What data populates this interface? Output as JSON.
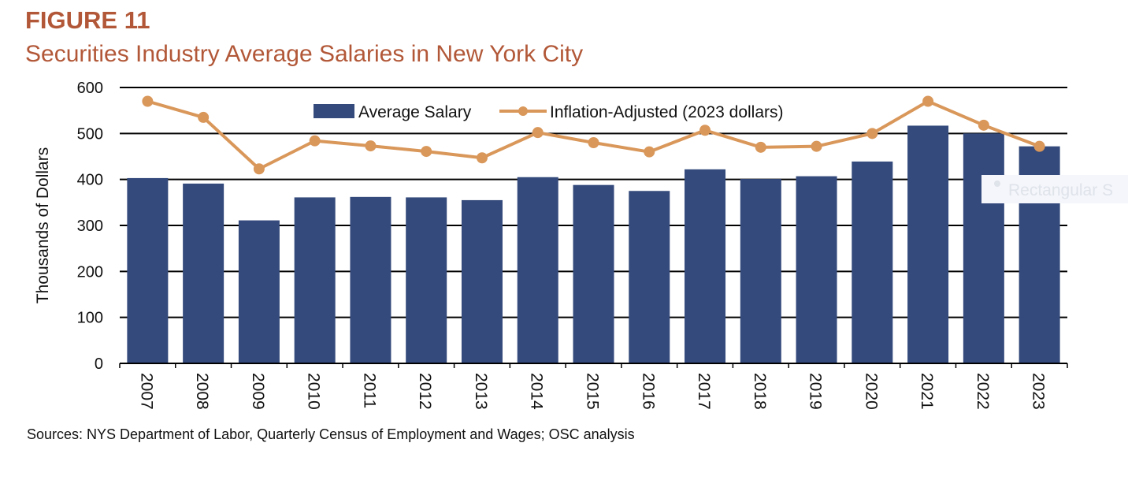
{
  "figure": {
    "label": "FIGURE 11",
    "title": "Securities Industry Average Salaries in New York City",
    "source": "Sources: NYS Department of Labor, Quarterly Census of Employment and Wages; OSC analysis"
  },
  "overlay": {
    "ghost_label": "Rectangular S"
  },
  "chart_data": {
    "type": "bar",
    "categories": [
      "2007",
      "2008",
      "2009",
      "2010",
      "2011",
      "2012",
      "2013",
      "2014",
      "2015",
      "2016",
      "2017",
      "2018",
      "2019",
      "2020",
      "2021",
      "2022",
      "2023"
    ],
    "series": [
      {
        "name": "Average Salary",
        "type": "bar",
        "color": "#344a7c",
        "values": [
          403,
          391,
          311,
          361,
          362,
          361,
          355,
          405,
          388,
          375,
          422,
          401,
          407,
          439,
          517,
          500,
          472
        ]
      },
      {
        "name": "Inflation-Adjusted (2023 dollars)",
        "type": "line",
        "color": "#d9975a",
        "values": [
          570,
          535,
          423,
          484,
          473,
          461,
          447,
          502,
          480,
          460,
          507,
          470,
          472,
          500,
          570,
          518,
          472
        ]
      }
    ],
    "ylabel": "Thousands of Dollars",
    "xlabel": "",
    "ylim": [
      0,
      600
    ],
    "yticks": [
      0,
      100,
      200,
      300,
      400,
      500,
      600
    ],
    "grid": true,
    "legend": "top-center"
  }
}
